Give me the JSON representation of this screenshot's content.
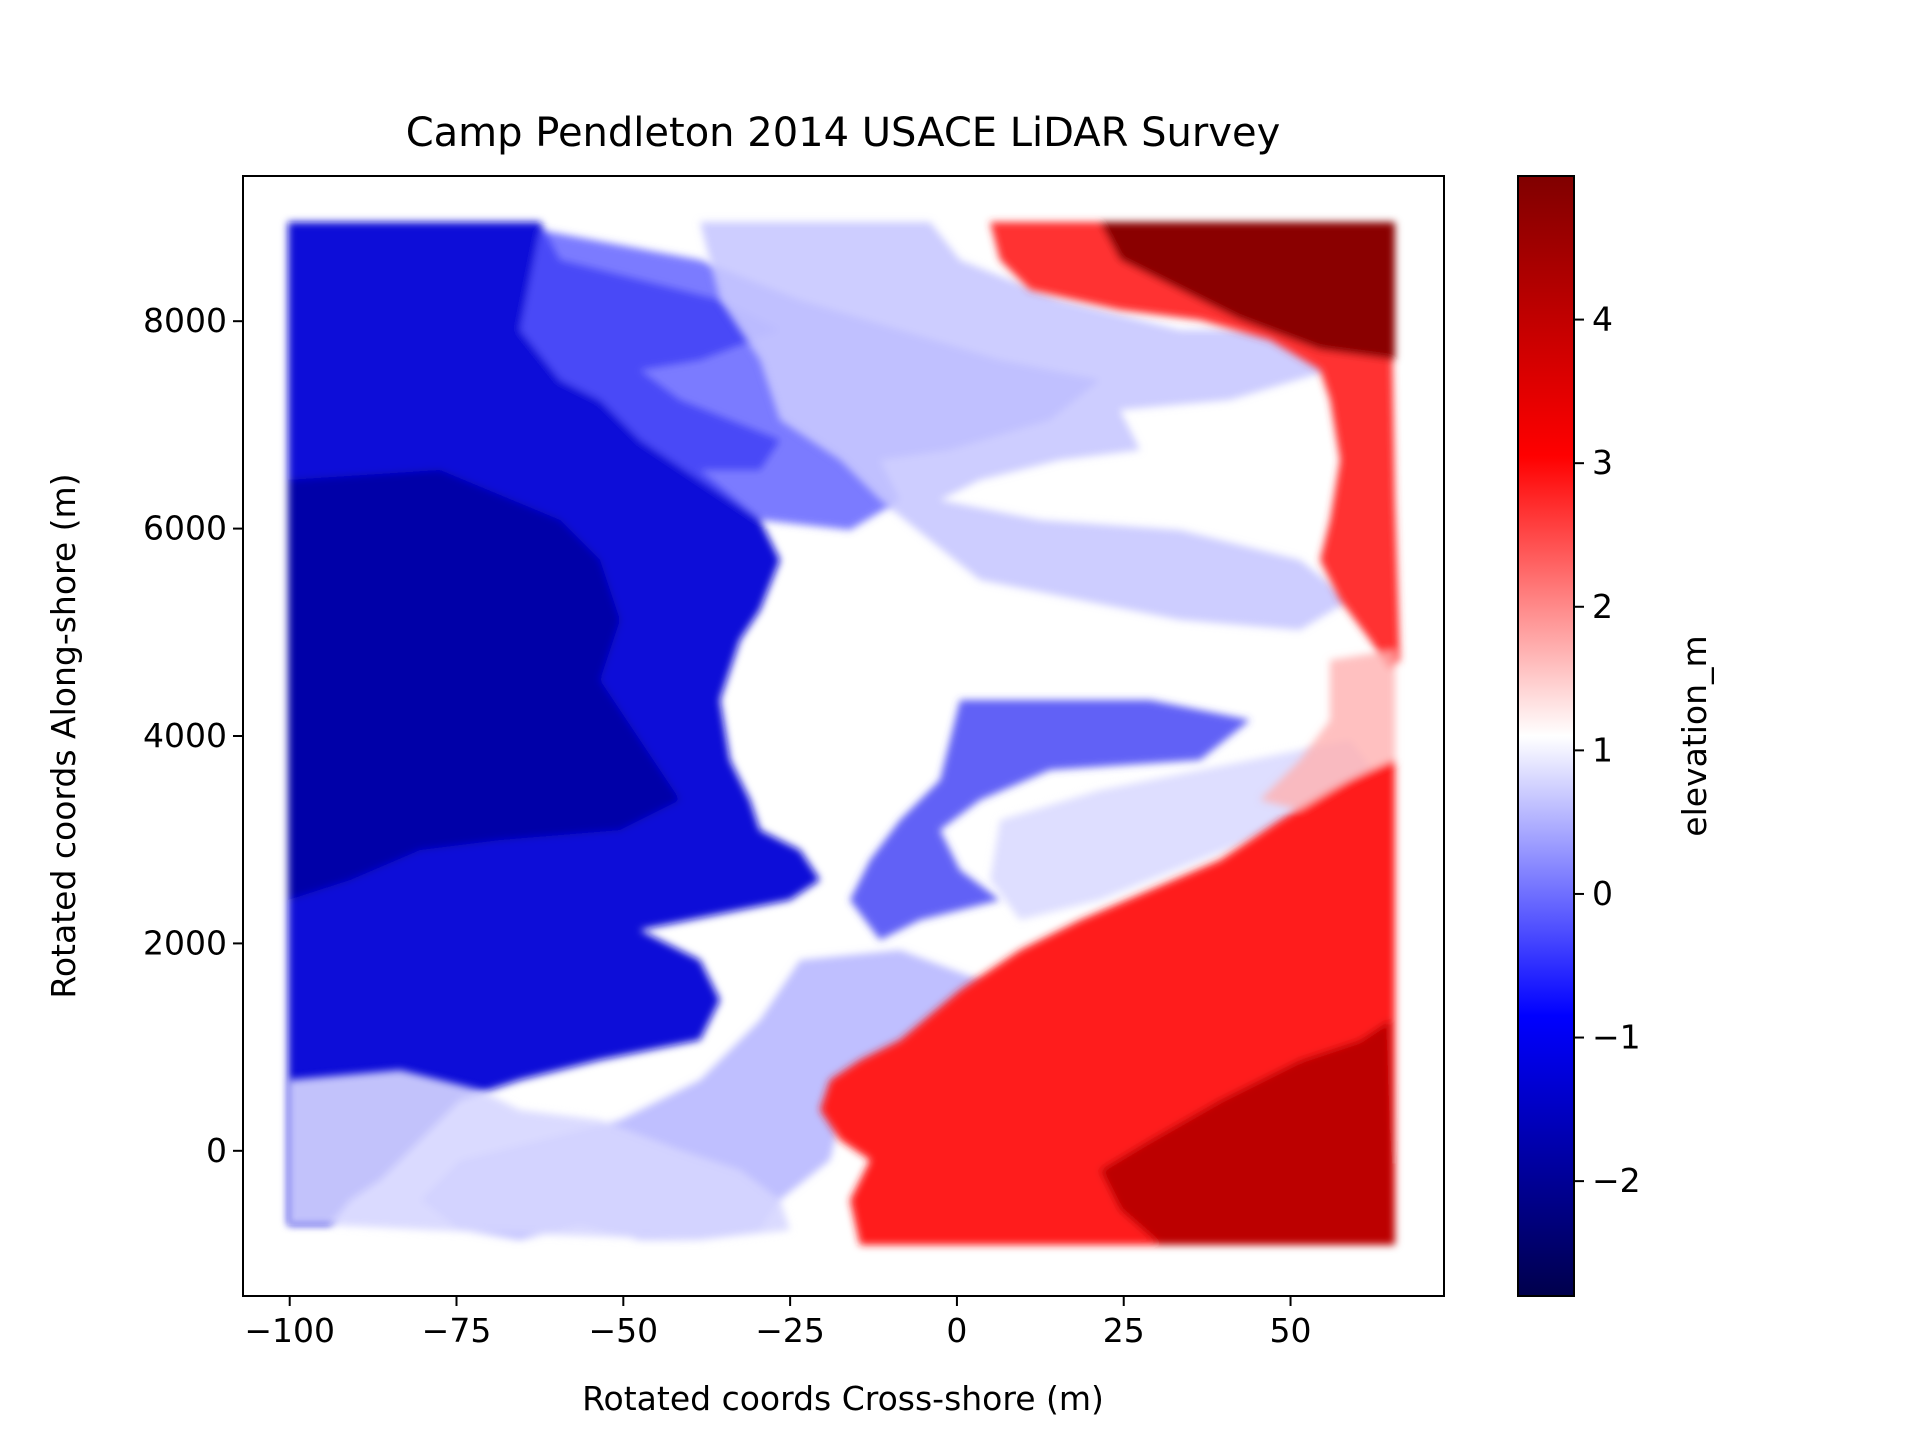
{
  "chart_data": {
    "type": "scatter",
    "title": "Camp Pendleton 2014 USACE LiDAR Survey",
    "xlabel": "Rotated coords Cross-shore (m)",
    "ylabel": "Rotated coords Along-shore (m)",
    "xlim": [
      -107,
      73
    ],
    "ylim": [
      -1400,
      9400
    ],
    "xticks": [
      -100,
      -75,
      -50,
      -25,
      0,
      25,
      50
    ],
    "xtick_labels": [
      "−100",
      "−75",
      "−50",
      "−25",
      "0",
      "25",
      "50"
    ],
    "yticks": [
      0,
      2000,
      4000,
      6000,
      8000
    ],
    "ytick_labels": [
      "0",
      "2000",
      "4000",
      "6000",
      "8000"
    ],
    "grid": false,
    "colormap": "seismic",
    "colorbar": {
      "label": "elevation_m",
      "range": [
        -2.8,
        5.0
      ],
      "ticks": [
        -2,
        -1,
        0,
        1,
        2,
        3,
        4
      ],
      "tick_labels": [
        "−2",
        "−1",
        "0",
        "1",
        "2",
        "3",
        "4"
      ]
    },
    "series_description_points": [
      {
        "x": -100,
        "y": 8800,
        "elevation_m": -1.1
      },
      {
        "x": -100,
        "y": 5000,
        "elevation_m": -2.2
      },
      {
        "x": -100,
        "y": 2000,
        "elevation_m": -1.0
      },
      {
        "x": -100,
        "y": -800,
        "elevation_m": -0.8
      },
      {
        "x": -60,
        "y": 6000,
        "elevation_m": -1.3
      },
      {
        "x": -40,
        "y": 4000,
        "elevation_m": -1.6
      },
      {
        "x": -20,
        "y": 8700,
        "elevation_m": 0.6
      },
      {
        "x": 5,
        "y": 4200,
        "elevation_m": -0.9
      },
      {
        "x": 30,
        "y": 6500,
        "elevation_m": 0.4
      },
      {
        "x": 60,
        "y": 8600,
        "elevation_m": 4.5
      },
      {
        "x": 62,
        "y": 6000,
        "elevation_m": 2.6
      },
      {
        "x": 60,
        "y": 2500,
        "elevation_m": 3.2
      },
      {
        "x": 40,
        "y": 0,
        "elevation_m": 3.6
      },
      {
        "x": 60,
        "y": -900,
        "elevation_m": 3.9
      },
      {
        "x": -15,
        "y": 0,
        "elevation_m": 2.0
      }
    ]
  }
}
